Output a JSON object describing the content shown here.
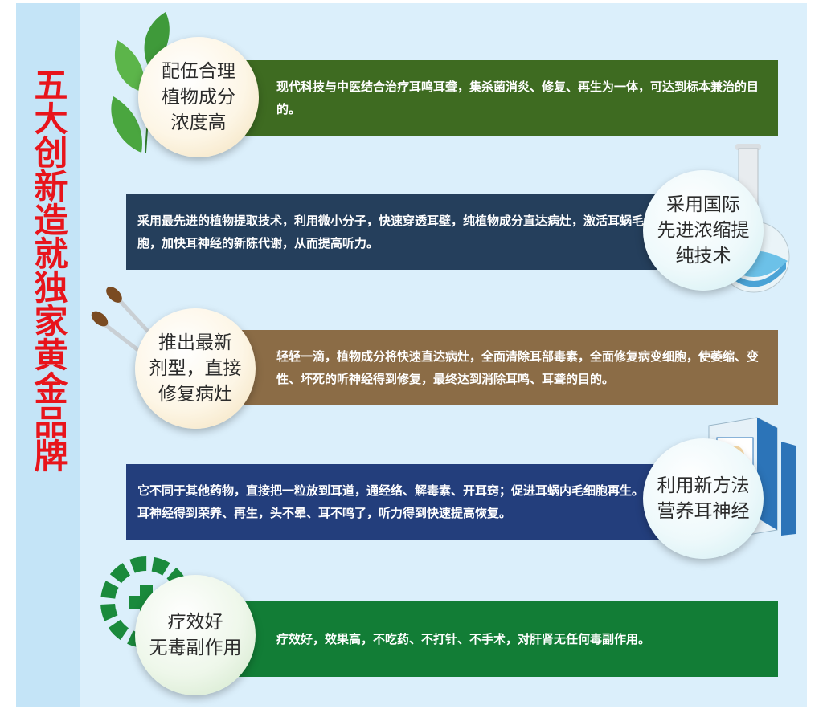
{
  "side_title": "五大创新造就独家黄金品牌",
  "colors": {
    "green_dark": "#3e6b21",
    "navy": "#253f5c",
    "brown": "#8b6c46",
    "blue": "#233e7c",
    "green": "#127d36",
    "title_red": "#e8141b"
  },
  "items": [
    {
      "circle_lines": [
        "配伍合理",
        "植物成分",
        "浓度高"
      ],
      "text": "现代科技与中医结合治疗耳鸣耳聋，集杀菌消炎、修复、再生为一体，可达到标本兼治的目的。",
      "icon": "leaf-icon"
    },
    {
      "circle_lines": [
        "采用国际",
        "先进浓缩提",
        "纯技术"
      ],
      "text": "采用最先进的植物提取技术，利用微小分子，快速穿透耳壁，纯植物成分直达病灶，激活耳蜗毛细胞，加快耳神经的新陈代谢，从而提高听力。",
      "icon": "flask-icon"
    },
    {
      "circle_lines": [
        "推出最新",
        "剂型，直接",
        "修复病灶"
      ],
      "text": "轻轻一滴，植物成分将快速直达病灶，全面清除耳部毒素，全面修复病变细胞，使萎缩、变性、坏死的听神经得到修复，最终达到消除耳鸣、耳聋的目的。",
      "icon": "dropper-icon"
    },
    {
      "circle_lines": [
        "利用新方法",
        "营养耳神经"
      ],
      "text": "它不同于其他药物，直接把一粒放到耳道，通经络、解毒素、开耳窍；促进耳蜗内毛细胞再生。使耳神经得到荣养、再生，头不晕、耳不鸣了，听力得到快速提高恢复。",
      "icon": "medicine-box-icon"
    },
    {
      "circle_lines": [
        "疗效好",
        "无毒副作用"
      ],
      "text": "疗效好，效果高，不吃药、不打针、不手术，对肝肾无任何毒副作用。",
      "icon": "pharmacy-gear-icon"
    }
  ]
}
